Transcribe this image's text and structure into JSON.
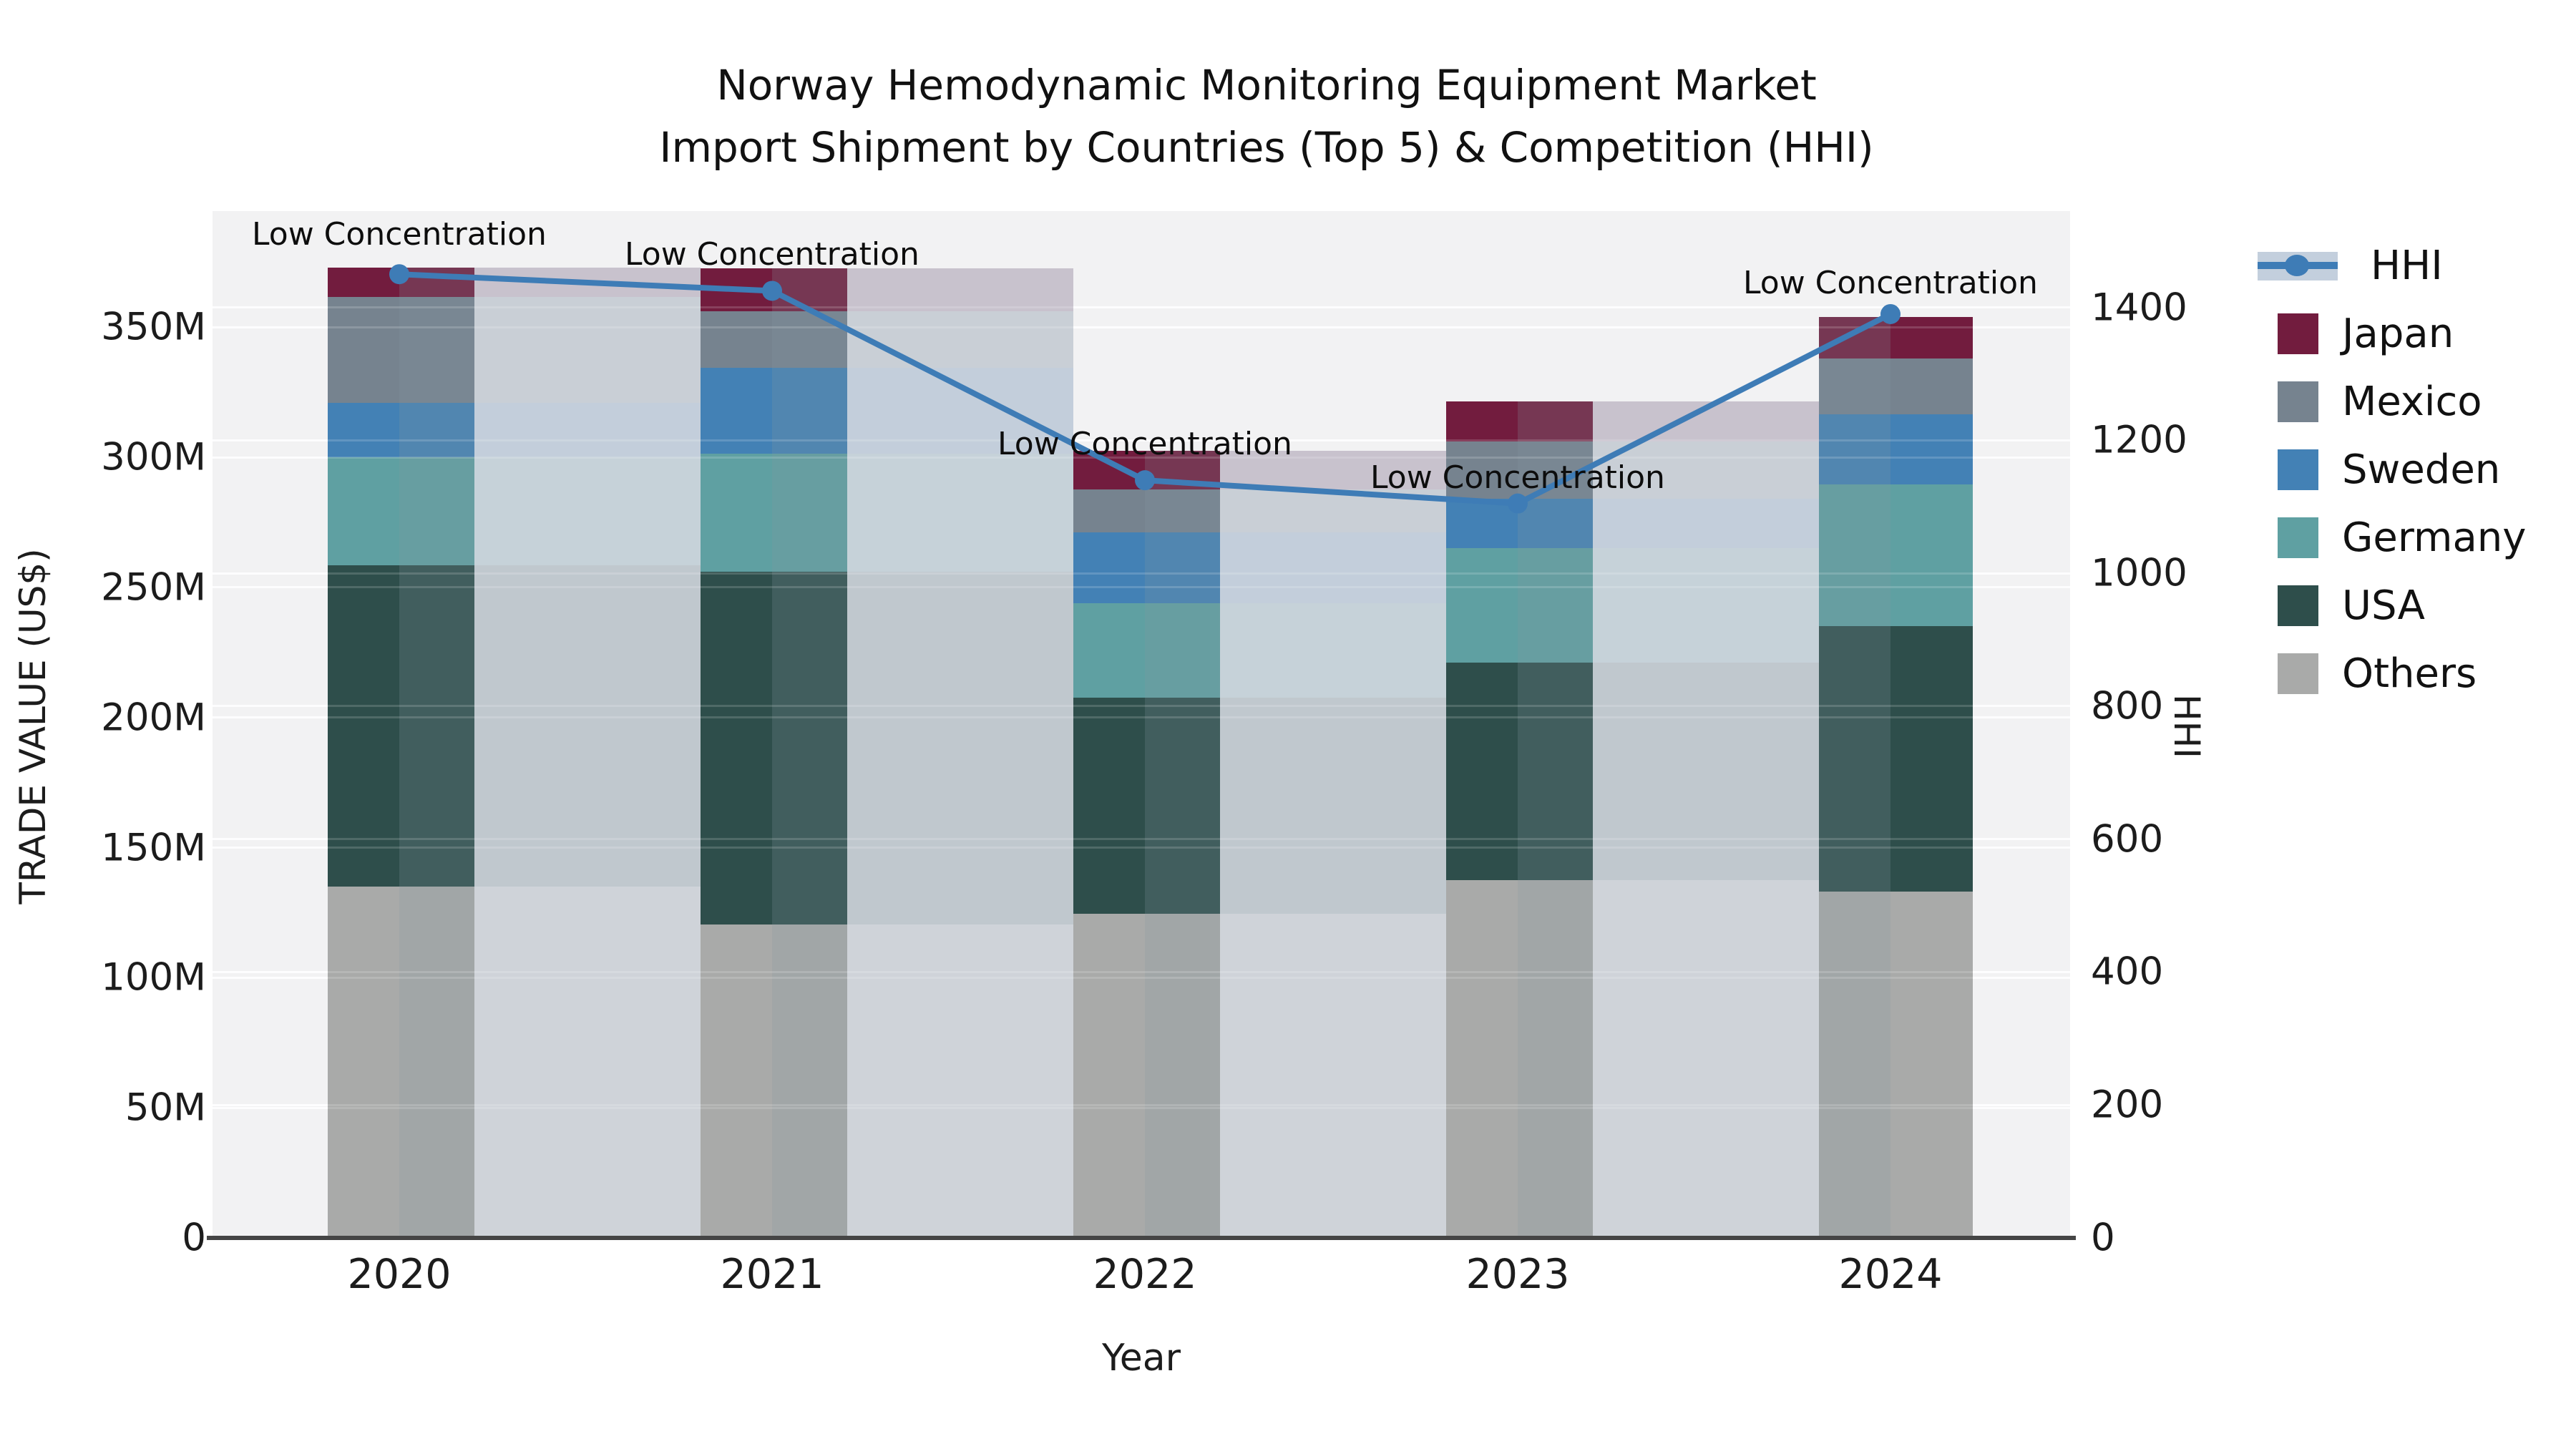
{
  "title": {
    "line1": "Norway Hemodynamic Monitoring Equipment Market",
    "line2": "Import Shipment by Countries (Top 5) & Competition (HHI)"
  },
  "axes": {
    "y_left_title": "TRADE VALUE (US$)",
    "y_right_title": "HHI",
    "x_title": "Year",
    "y_left_ticks": [
      {
        "value": 0,
        "label": "0"
      },
      {
        "value": 50,
        "label": "50M"
      },
      {
        "value": 100,
        "label": "100M"
      },
      {
        "value": 150,
        "label": "150M"
      },
      {
        "value": 200,
        "label": "200M"
      },
      {
        "value": 250,
        "label": "250M"
      },
      {
        "value": 300,
        "label": "300M"
      },
      {
        "value": 350,
        "label": "350M"
      }
    ],
    "y_right_ticks": [
      {
        "value": 0,
        "label": "0"
      },
      {
        "value": 200,
        "label": "200"
      },
      {
        "value": 400,
        "label": "400"
      },
      {
        "value": 600,
        "label": "600"
      },
      {
        "value": 800,
        "label": "800"
      },
      {
        "value": 1000,
        "label": "1000"
      },
      {
        "value": 1200,
        "label": "1200"
      },
      {
        "value": 1400,
        "label": "1400"
      }
    ]
  },
  "legend": {
    "line_item": {
      "label": "HHI",
      "line_color": "#3e7cb6",
      "band_color": "#c3cfdd"
    },
    "items": [
      {
        "label": "Japan",
        "color": "#721c3e"
      },
      {
        "label": "Mexico",
        "color": "#76838f"
      },
      {
        "label": "Sweden",
        "color": "#4381b5"
      },
      {
        "label": "Germany",
        "color": "#5fa0a2"
      },
      {
        "label": "USA",
        "color": "#2e4e4b"
      },
      {
        "label": "Others",
        "color": "#a9aaa9"
      }
    ]
  },
  "chart_data": {
    "type": "bar",
    "subtype": "stacked-bars-with-hhi-line",
    "title": "Norway Hemodynamic Monitoring Equipment Market — Import Shipment by Countries (Top 5) & Competition (HHI)",
    "xlabel": "Year",
    "ylabel": "TRADE VALUE (US$)",
    "y2label": "HHI",
    "categories": [
      "2020",
      "2021",
      "2022",
      "2023",
      "2024"
    ],
    "values_unit": "millions US$",
    "ylim": [
      0,
      394.6
    ],
    "y2lim": [
      0,
      1545
    ],
    "grid": true,
    "legend_position": "right",
    "series": [
      {
        "name": "Others",
        "color": "#a9aaa9",
        "color_medium": "#a1a6a7",
        "color_light": "#cfd3d9",
        "values": [
          135,
          120.5,
          124.5,
          137.5,
          133
        ]
      },
      {
        "name": "USA",
        "color": "#2e4e4b",
        "color_medium": "#415e5e",
        "color_light": "#c0c8ce",
        "values": [
          123.5,
          135.5,
          83,
          83.5,
          102
        ]
      },
      {
        "name": "Germany",
        "color": "#5fa0a2",
        "color_medium": "#679ea1",
        "color_light": "#c6d2d9",
        "values": [
          41.5,
          45.5,
          36.5,
          44,
          54.5
        ]
      },
      {
        "name": "Sweden",
        "color": "#4381b5",
        "color_medium": "#5186b0",
        "color_light": "#c3cedb",
        "values": [
          21,
          33,
          27,
          19,
          27
        ]
      },
      {
        "name": "Mexico",
        "color": "#76838f",
        "color_medium": "#798793",
        "color_light": "#c9cfd6",
        "values": [
          40.5,
          21.5,
          16.5,
          22,
          21.5
        ]
      },
      {
        "name": "Japan",
        "color": "#721c3e",
        "color_medium": "#763753",
        "color_light": "#c8c2cd",
        "values": [
          11.5,
          16.5,
          15,
          15.5,
          16
        ]
      }
    ],
    "line_series": {
      "name": "HHI",
      "color": "#3e7cb6",
      "values": [
        1450,
        1425,
        1140,
        1105,
        1390
      ]
    },
    "annotations": [
      {
        "text": "Low Concentration",
        "category": "2020"
      },
      {
        "text": "Low Concentration",
        "category": "2021"
      },
      {
        "text": "Low Concentration",
        "category": "2022"
      },
      {
        "text": "Low Concentration",
        "category": "2023"
      },
      {
        "text": "Low Concentration",
        "category": "2024"
      }
    ]
  }
}
